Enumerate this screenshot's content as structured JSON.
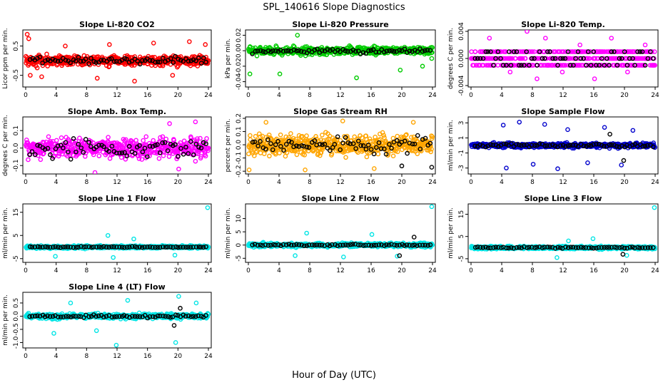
{
  "figure": {
    "title": "SPL_140616  Slope Diagnostics",
    "xlabel": "Hour of Day (UTC)"
  },
  "chart_data": [
    {
      "type": "scatter",
      "title": "Slope Li-820 CO2",
      "xlabel": "",
      "ylabel": "Licor ppm per min.",
      "xlim": [
        0,
        24
      ],
      "ylim": [
        -0.85,
        1.0
      ],
      "xticks": [
        "0",
        "4",
        "8",
        "12",
        "16",
        "20",
        "24"
      ],
      "yticks": [
        {
          "v": -0.5,
          "t": "-0.5"
        },
        {
          "v": 0.5,
          "t": "0.5"
        }
      ],
      "color": "#ff0000",
      "series_a": {
        "spread": 0.28,
        "outliers": [
          [
            0.2,
            0.9
          ],
          [
            0.4,
            0.75
          ],
          [
            0.6,
            -0.5
          ],
          [
            2.1,
            -0.55
          ],
          [
            5.2,
            0.5
          ],
          [
            9.4,
            -0.6
          ],
          [
            11.0,
            0.55
          ],
          [
            14.3,
            -0.7
          ],
          [
            16.8,
            0.6
          ],
          [
            19.3,
            -0.5
          ],
          [
            21.5,
            0.65
          ],
          [
            23.6,
            0.55
          ]
        ]
      },
      "series_b": {
        "spread": 0.18,
        "outliers": []
      }
    },
    {
      "type": "scatter",
      "title": "Slope Li-820 Pressure",
      "xlabel": "",
      "ylabel": "kPa per min.",
      "xlim": [
        0,
        24
      ],
      "ylim": [
        -0.045,
        0.025
      ],
      "xticks": [
        "0",
        "4",
        "8",
        "12",
        "16",
        "20",
        "24"
      ],
      "yticks": [
        {
          "v": -0.04,
          "t": "-0.04"
        },
        {
          "v": -0.02,
          "t": "-0.02"
        },
        {
          "v": 0.0,
          "t": "0.00"
        },
        {
          "v": 0.02,
          "t": "0.02"
        }
      ],
      "color": "#00cc00",
      "series_a": {
        "spread": 0.008,
        "outliers": [
          [
            0.2,
            -0.03
          ],
          [
            4.1,
            -0.03
          ],
          [
            6.4,
            0.02
          ],
          [
            14.1,
            -0.035
          ],
          [
            19.8,
            -0.025
          ],
          [
            22.7,
            -0.02
          ],
          [
            23.9,
            -0.01
          ]
        ]
      },
      "series_b": {
        "spread": 0.006,
        "outliers": []
      }
    },
    {
      "type": "scatter",
      "title": "Slope Li-820 Temp.",
      "xlabel": "",
      "ylabel": "degrees C per min.",
      "xlim": [
        0,
        24
      ],
      "ylim": [
        -0.004,
        0.004
      ],
      "xticks": [
        "0",
        "4",
        "8",
        "12",
        "16",
        "20",
        "24"
      ],
      "yticks": [
        {
          "v": -0.004,
          "t": "-0.004"
        },
        {
          "v": 0.0,
          "t": "0.000"
        },
        {
          "v": 0.004,
          "t": "0.004"
        }
      ],
      "color": "#ff00ff",
      "series_a": {
        "levels": [
          -0.001,
          0.0,
          0.001
        ],
        "outliers": [
          [
            2.4,
            0.003
          ],
          [
            5.1,
            -0.002
          ],
          [
            7.3,
            0.004
          ],
          [
            8.6,
            -0.003
          ],
          [
            9.7,
            0.003
          ],
          [
            11.9,
            -0.002
          ],
          [
            14.2,
            0.002
          ],
          [
            16.1,
            -0.003
          ],
          [
            18.3,
            0.003
          ],
          [
            20.4,
            -0.002
          ],
          [
            22.7,
            0.002
          ]
        ]
      },
      "series_b": {
        "levels": [
          -0.001,
          0.0,
          0.001
        ],
        "outliers": []
      }
    },
    {
      "type": "scatter",
      "title": "Slope Amb. Box Temp.",
      "xlabel": "",
      "ylabel": "degrees C per min.",
      "xlim": [
        0,
        24
      ],
      "ylim": [
        -0.14,
        0.17
      ],
      "xticks": [
        "0",
        "4",
        "8",
        "12",
        "16",
        "20",
        "24"
      ],
      "yticks": [
        {
          "v": -0.1,
          "t": "-0.1"
        },
        {
          "v": 0.0,
          "t": "0.0"
        },
        {
          "v": 0.1,
          "t": "0.1"
        }
      ],
      "color": "#ff00ff",
      "series_a": {
        "spread": 0.09,
        "outliers": [
          [
            9.1,
            -0.14
          ],
          [
            18.9,
            0.14
          ],
          [
            20.1,
            -0.12
          ],
          [
            22.3,
            0.15
          ]
        ]
      },
      "series_b": {
        "spread": 0.09,
        "outliers": []
      }
    },
    {
      "type": "scatter",
      "title": "Slope Gas Stream RH",
      "xlabel": "",
      "ylabel": "percent per min.",
      "xlim": [
        0,
        24
      ],
      "ylim": [
        -0.21,
        0.2
      ],
      "xticks": [
        "0",
        "4",
        "8",
        "12",
        "16",
        "20",
        "24"
      ],
      "yticks": [
        {
          "v": -0.2,
          "t": "-0.2"
        },
        {
          "v": -0.1,
          "t": "-0.1"
        },
        {
          "v": 0.0,
          "t": "0.0"
        },
        {
          "v": 0.1,
          "t": "0.1"
        },
        {
          "v": 0.2,
          "t": "0.2"
        }
      ],
      "color": "#ffa500",
      "series_a": {
        "spread": 0.12,
        "outliers": [
          [
            0.1,
            -0.19
          ],
          [
            2.3,
            0.17
          ],
          [
            7.4,
            -0.19
          ],
          [
            12.3,
            0.18
          ],
          [
            16.4,
            -0.18
          ],
          [
            21.5,
            0.17
          ]
        ]
      },
      "series_b": {
        "spread": 0.1,
        "outliers": [
          [
            20.0,
            -0.16
          ],
          [
            23.9,
            -0.17
          ]
        ]
      }
    },
    {
      "type": "scatter",
      "title": "Slope Sample Flow",
      "xlabel": "",
      "ylabel": "ml/min per min.",
      "xlim": [
        0,
        24
      ],
      "ylim": [
        -3.6,
        3.6
      ],
      "xticks": [
        "0",
        "4",
        "8",
        "12",
        "16",
        "20",
        "24"
      ],
      "yticks": [
        {
          "v": -3,
          "t": "-3"
        },
        {
          "v": -1,
          "t": "-1"
        },
        {
          "v": 1,
          "t": "1"
        },
        {
          "v": 3,
          "t": "3"
        }
      ],
      "color": "#0000cc",
      "series_a": {
        "spread": 0.5,
        "outliers": [
          [
            4.2,
            2.7
          ],
          [
            4.6,
            -3.0
          ],
          [
            6.3,
            3.1
          ],
          [
            8.1,
            -2.5
          ],
          [
            9.6,
            2.8
          ],
          [
            11.3,
            -3.1
          ],
          [
            12.6,
            2.1
          ],
          [
            15.2,
            -2.3
          ],
          [
            17.4,
            2.4
          ],
          [
            19.6,
            -2.6
          ],
          [
            21.1,
            2.0
          ]
        ]
      },
      "series_b": {
        "spread": 0.35,
        "outliers": [
          [
            18.1,
            1.5
          ],
          [
            19.9,
            -2.0
          ]
        ]
      }
    },
    {
      "type": "scatter",
      "title": "Slope Line 1 Flow",
      "xlabel": "",
      "ylabel": "ml/min per min.",
      "xlim": [
        0,
        24
      ],
      "ylim": [
        -6,
        18
      ],
      "xticks": [
        "0",
        "4",
        "8",
        "12",
        "16",
        "20",
        "24"
      ],
      "yticks": [
        {
          "v": -5,
          "t": "-5"
        },
        {
          "v": 5,
          "t": "5"
        },
        {
          "v": 15,
          "t": "15"
        }
      ],
      "color": "#00e5e5",
      "series_a": {
        "spread": 1.0,
        "outliers": [
          [
            3.9,
            -4.0
          ],
          [
            10.8,
            5.0
          ],
          [
            11.5,
            -4.5
          ],
          [
            14.2,
            3.5
          ],
          [
            19.6,
            -3.5
          ],
          [
            23.9,
            17.0
          ]
        ]
      },
      "series_b": {
        "spread": 0.35,
        "outliers": []
      }
    },
    {
      "type": "scatter",
      "title": "Slope Line 2 Flow",
      "xlabel": "",
      "ylabel": "ml/min per min.",
      "xlim": [
        0,
        24
      ],
      "ylim": [
        -6,
        15
      ],
      "xticks": [
        "0",
        "4",
        "8",
        "12",
        "16",
        "20",
        "24"
      ],
      "yticks": [
        {
          "v": -5,
          "t": "-5"
        },
        {
          "v": 0,
          "t": "0"
        },
        {
          "v": 5,
          "t": "5"
        },
        {
          "v": 10,
          "t": "10"
        }
      ],
      "color": "#00e5e5",
      "series_a": {
        "spread": 1.2,
        "outliers": [
          [
            6.1,
            -4.0
          ],
          [
            7.6,
            4.5
          ],
          [
            12.4,
            -4.5
          ],
          [
            16.1,
            4.0
          ],
          [
            19.4,
            -4.2
          ],
          [
            23.9,
            14.5
          ]
        ]
      },
      "series_b": {
        "spread": 0.6,
        "outliers": [
          [
            19.7,
            -4.0
          ],
          [
            21.6,
            3.0
          ]
        ]
      }
    },
    {
      "type": "scatter",
      "title": "Slope Line 3 Flow",
      "xlabel": "",
      "ylabel": "ml/min per min.",
      "xlim": [
        0,
        24
      ],
      "ylim": [
        -6,
        19
      ],
      "xticks": [
        "0",
        "4",
        "8",
        "12",
        "16",
        "20",
        "24"
      ],
      "yticks": [
        {
          "v": -5,
          "t": "-5"
        },
        {
          "v": 5,
          "t": "5"
        },
        {
          "v": 15,
          "t": "15"
        }
      ],
      "color": "#00e5e5",
      "series_a": {
        "spread": 1.1,
        "outliers": [
          [
            11.2,
            -4.5
          ],
          [
            12.7,
            3.0
          ],
          [
            15.9,
            4.0
          ],
          [
            20.3,
            -3.5
          ],
          [
            23.9,
            18.0
          ]
        ]
      },
      "series_b": {
        "spread": 0.5,
        "outliers": [
          [
            19.8,
            -3.0
          ]
        ]
      }
    },
    {
      "type": "scatter",
      "title": "Slope Line 4 (LT) Flow",
      "xlabel": "",
      "ylabel": "ml/min per min.",
      "xlim": [
        0,
        24
      ],
      "ylim": [
        -1.15,
        0.85
      ],
      "xticks": [
        "0",
        "4",
        "8",
        "12",
        "16",
        "20",
        "24"
      ],
      "yticks": [
        {
          "v": -1.0,
          "t": "-1.0"
        },
        {
          "v": -0.5,
          "t": "-0.5"
        },
        {
          "v": 0.0,
          "t": "0.0"
        },
        {
          "v": 0.5,
          "t": "0.5"
        }
      ],
      "color": "#00e5e5",
      "series_a": {
        "spread": 0.15,
        "outliers": [
          [
            3.7,
            -0.65
          ],
          [
            5.9,
            0.5
          ],
          [
            9.3,
            -0.55
          ],
          [
            11.9,
            -1.1
          ],
          [
            13.4,
            0.6
          ],
          [
            19.7,
            -1.0
          ],
          [
            20.1,
            0.75
          ],
          [
            22.4,
            0.5
          ]
        ]
      },
      "series_b": {
        "spread": 0.08,
        "outliers": [
          [
            19.5,
            -0.35
          ],
          [
            20.3,
            0.3
          ]
        ]
      }
    }
  ]
}
